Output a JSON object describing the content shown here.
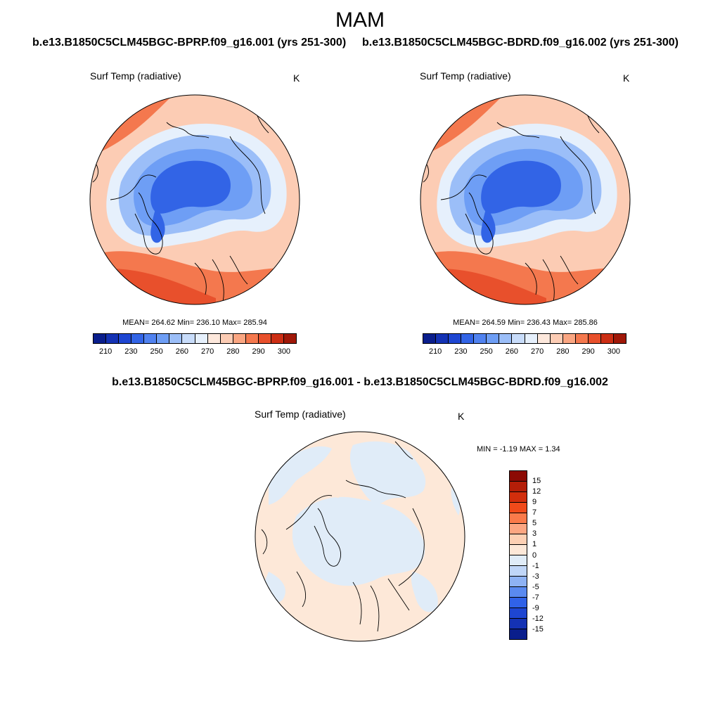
{
  "season": "MAM",
  "runs": {
    "left": "b.e13.B1850C5CLM45BGC-BPRP.f09_g16.001 (yrs 251-300)",
    "right": "b.e13.B1850C5CLM45BGC-BDRD.f09_g16.002 (yrs 251-300)"
  },
  "diff_title": "b.e13.B1850C5CLM45BGC-BPRP.f09_g16.001 - b.e13.B1850C5CLM45BGC-BDRD.f09_g16.002",
  "chart_data": [
    {
      "type": "heatmap",
      "projection": "north-polar-stereographic",
      "title": "Surf Temp (radiative)",
      "units": "K",
      "stats": {
        "mean": 264.62,
        "min": 236.1,
        "max": 285.94
      },
      "stats_text": "MEAN= 264.62  Min= 236.10  Max= 285.94",
      "colorbar": {
        "orientation": "horizontal",
        "levels": [
          210,
          220,
          230,
          240,
          250,
          255,
          260,
          265,
          270,
          275,
          280,
          285,
          290,
          295,
          300
        ],
        "tick_labels": [
          "210",
          "230",
          "250",
          "260",
          "270",
          "280",
          "290",
          "300"
        ],
        "colors": [
          "#0a1e8c",
          "#1432b4",
          "#1e46d2",
          "#3264e6",
          "#5082f0",
          "#6e9ef5",
          "#9bbef8",
          "#c8dcfa",
          "#e6f0fc",
          "#fde8dc",
          "#fcccb4",
          "#faa682",
          "#f4784e",
          "#e8502c",
          "#cc2e14",
          "#a01808"
        ]
      }
    },
    {
      "type": "heatmap",
      "projection": "north-polar-stereographic",
      "title": "Surf Temp (radiative)",
      "units": "K",
      "stats": {
        "mean": 264.59,
        "min": 236.43,
        "max": 285.86
      },
      "stats_text": "MEAN= 264.59  Min= 236.43  Max= 285.86",
      "colorbar": {
        "orientation": "horizontal",
        "levels": [
          210,
          220,
          230,
          240,
          250,
          255,
          260,
          265,
          270,
          275,
          280,
          285,
          290,
          295,
          300
        ],
        "tick_labels": [
          "210",
          "230",
          "250",
          "260",
          "270",
          "280",
          "290",
          "300"
        ],
        "colors": [
          "#0a1e8c",
          "#1432b4",
          "#1e46d2",
          "#3264e6",
          "#5082f0",
          "#6e9ef5",
          "#9bbef8",
          "#c8dcfa",
          "#e6f0fc",
          "#fde8dc",
          "#fcccb4",
          "#faa682",
          "#f4784e",
          "#e8502c",
          "#cc2e14",
          "#a01808"
        ]
      }
    },
    {
      "type": "heatmap",
      "projection": "north-polar-stereographic",
      "title": "Surf Temp (radiative)",
      "units": "K",
      "stats": {
        "min": -1.19,
        "max": 1.34
      },
      "stats_text": "MIN =  -1.19 MAX =   1.34",
      "colorbar": {
        "orientation": "vertical",
        "levels": [
          15,
          12,
          9,
          7,
          5,
          3,
          1,
          0,
          -1,
          -3,
          -5,
          -7,
          -9,
          -12,
          -15
        ],
        "tick_labels": [
          "15",
          "12",
          "9",
          "7",
          "5",
          "3",
          "1",
          "0",
          "-1",
          "-3",
          "-5",
          "-7",
          "-9",
          "-12",
          "-15"
        ],
        "colors": [
          "#8c0a04",
          "#b41e08",
          "#d22e0c",
          "#f04a1a",
          "#fa7a4a",
          "#fca682",
          "#fdd0b4",
          "#fde8d8",
          "#e0ecf8",
          "#c0d6f8",
          "#8eb2f4",
          "#5a8af0",
          "#3062e8",
          "#1e46d2",
          "#1432b4",
          "#0a1e8c"
        ]
      }
    }
  ]
}
